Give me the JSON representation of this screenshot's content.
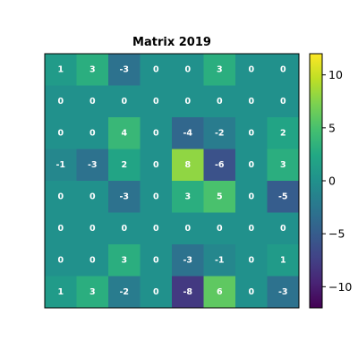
{
  "chart_data": {
    "type": "heatmap",
    "title": "Matrix 2019",
    "colormap": "viridis",
    "vmin": -12,
    "vmax": 12,
    "values": [
      [
        1,
        3,
        -3,
        0,
        0,
        3,
        0,
        0
      ],
      [
        0,
        0,
        0,
        0,
        0,
        0,
        0,
        0
      ],
      [
        0,
        0,
        4,
        0,
        -4,
        -2,
        0,
        2
      ],
      [
        -1,
        -3,
        2,
        0,
        8,
        -6,
        0,
        3
      ],
      [
        0,
        0,
        -3,
        0,
        3,
        5,
        0,
        -5
      ],
      [
        0,
        0,
        0,
        0,
        0,
        0,
        0,
        0
      ],
      [
        0,
        0,
        3,
        0,
        -3,
        -1,
        0,
        1
      ],
      [
        1,
        3,
        -2,
        0,
        -8,
        6,
        0,
        -3
      ]
    ],
    "colorbar": {
      "ticks": [
        -10,
        -5,
        0,
        5,
        10
      ],
      "tick_labels": [
        "−10",
        "−5",
        "0",
        "5",
        "10"
      ]
    },
    "grid": false
  }
}
